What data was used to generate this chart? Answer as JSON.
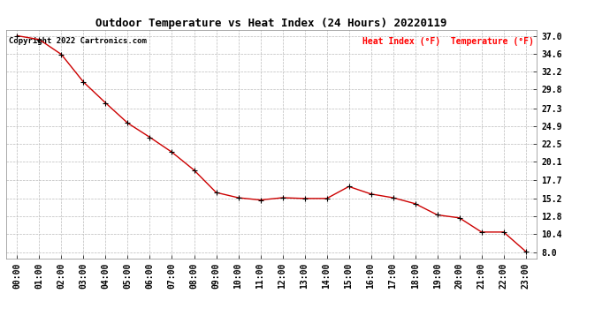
{
  "title": "Outdoor Temperature vs Heat Index (24 Hours) 20220119",
  "copyright_text": "Copyright 2022 Cartronics.com",
  "legend_text": "Heat Index (°F)  Temperature (°F)",
  "legend_color": "#FF0000",
  "background_color": "#ffffff",
  "grid_color": "#bbbbbb",
  "x_labels": [
    "00:00",
    "01:00",
    "02:00",
    "03:00",
    "04:00",
    "05:00",
    "06:00",
    "07:00",
    "08:00",
    "09:00",
    "10:00",
    "11:00",
    "12:00",
    "13:00",
    "14:00",
    "15:00",
    "16:00",
    "17:00",
    "18:00",
    "19:00",
    "20:00",
    "21:00",
    "22:00",
    "23:00"
  ],
  "y_ticks": [
    8.0,
    10.4,
    12.8,
    15.2,
    17.7,
    20.1,
    22.5,
    24.9,
    27.3,
    29.8,
    32.2,
    34.6,
    37.0
  ],
  "ylim": [
    7.2,
    37.8
  ],
  "temperature_data": [
    37.0,
    36.5,
    34.5,
    30.8,
    28.0,
    25.3,
    23.4,
    21.4,
    19.0,
    16.0,
    15.3,
    15.0,
    15.3,
    15.2,
    15.2,
    16.8,
    15.8,
    15.3,
    14.5,
    13.0,
    12.6,
    10.7,
    10.7,
    8.1
  ],
  "line_color": "#CC0000",
  "marker_color": "#000000",
  "marker_size": 4,
  "line_width": 1.0,
  "title_fontsize": 9,
  "tick_fontsize": 7,
  "legend_fontsize": 7,
  "copyright_fontsize": 6.5
}
